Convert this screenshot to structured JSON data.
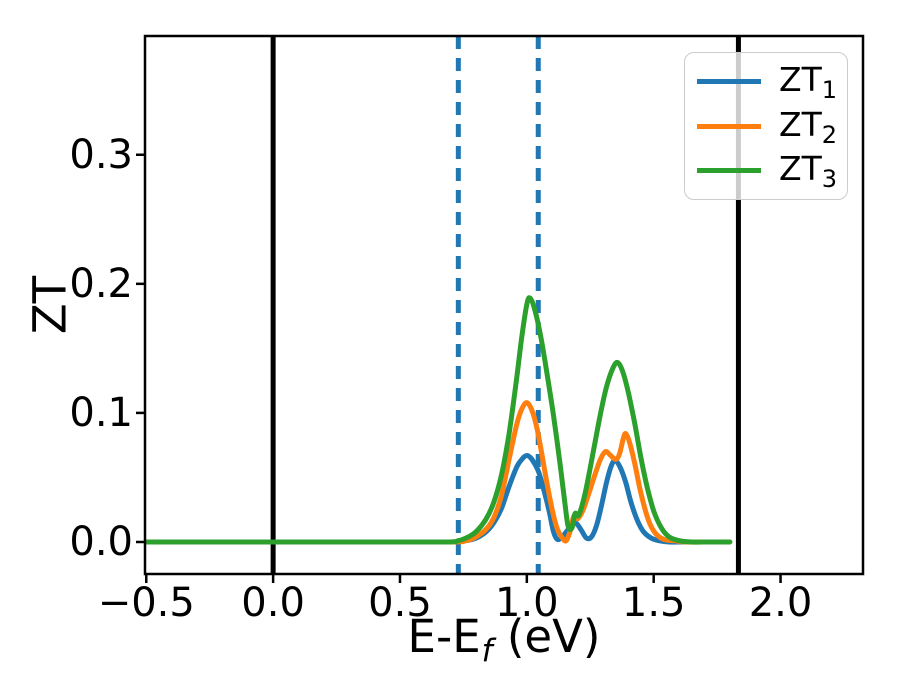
{
  "chart_data": {
    "type": "line",
    "title": "",
    "ylabel": "ZT",
    "xlabel": {
      "prefix": "E-E",
      "sub": "f",
      "suffix": " (eV)"
    },
    "xlim": [
      -0.505,
      2.325
    ],
    "ylim": [
      -0.0248,
      0.392
    ],
    "grid": false,
    "legend_position": "upper right",
    "axis_color": "#000000",
    "x_ticks": [
      {
        "value": -0.5,
        "label": "−0.5"
      },
      {
        "value": 0.0,
        "label": "0.0"
      },
      {
        "value": 0.5,
        "label": "0.5"
      },
      {
        "value": 1.0,
        "label": "1.0"
      },
      {
        "value": 1.5,
        "label": "1.5"
      },
      {
        "value": 2.0,
        "label": "2.0"
      }
    ],
    "y_ticks": [
      {
        "value": 0.0,
        "label": "0.0"
      },
      {
        "value": 0.1,
        "label": "0.1"
      },
      {
        "value": 0.2,
        "label": "0.2"
      },
      {
        "value": 0.3,
        "label": "0.3"
      }
    ],
    "vlines_solid": {
      "color": "#000000",
      "linewidth": 5,
      "positions": [
        0.0,
        1.834
      ]
    },
    "vlines_dashed": {
      "color": "#1f77b4",
      "linewidth": 5,
      "dash": [
        13,
        9
      ],
      "positions": [
        0.73,
        1.045
      ]
    },
    "series": [
      {
        "name": "ZT1",
        "label_text": "ZT",
        "label_sub": "1",
        "color": "#1f77b4",
        "points": [
          [
            -0.5,
            0
          ],
          [
            -0.2,
            0
          ],
          [
            0.1,
            0
          ],
          [
            0.4,
            0
          ],
          [
            0.7,
            0
          ],
          [
            0.76,
            0.001
          ],
          [
            0.8,
            0.003
          ],
          [
            0.84,
            0.008
          ],
          [
            0.87,
            0.015
          ],
          [
            0.9,
            0.026
          ],
          [
            0.93,
            0.043
          ],
          [
            0.96,
            0.058
          ],
          [
            0.98,
            0.064
          ],
          [
            1.0,
            0.067
          ],
          [
            1.02,
            0.064
          ],
          [
            1.045,
            0.055
          ],
          [
            1.07,
            0.038
          ],
          [
            1.09,
            0.022
          ],
          [
            1.105,
            0.008
          ],
          [
            1.12,
            0.002
          ],
          [
            1.14,
            0.004
          ],
          [
            1.16,
            0.009
          ],
          [
            1.18,
            0.013
          ],
          [
            1.195,
            0.0145
          ],
          [
            1.215,
            0.009
          ],
          [
            1.235,
            0.003
          ],
          [
            1.255,
            0.004
          ],
          [
            1.275,
            0.013
          ],
          [
            1.295,
            0.029
          ],
          [
            1.315,
            0.047
          ],
          [
            1.335,
            0.06
          ],
          [
            1.35,
            0.063
          ],
          [
            1.37,
            0.057
          ],
          [
            1.39,
            0.046
          ],
          [
            1.41,
            0.031
          ],
          [
            1.435,
            0.017
          ],
          [
            1.46,
            0.008
          ],
          [
            1.49,
            0.003
          ],
          [
            1.52,
            0.001
          ],
          [
            1.56,
            0
          ],
          [
            1.62,
            0
          ],
          [
            1.7,
            0
          ],
          [
            1.8,
            0
          ]
        ]
      },
      {
        "name": "ZT2",
        "label_text": "ZT",
        "label_sub": "2",
        "color": "#ff7f0e",
        "points": [
          [
            -0.5,
            0
          ],
          [
            -0.2,
            0
          ],
          [
            0.1,
            0
          ],
          [
            0.4,
            0
          ],
          [
            0.7,
            0
          ],
          [
            0.76,
            0.001
          ],
          [
            0.8,
            0.004
          ],
          [
            0.84,
            0.01
          ],
          [
            0.87,
            0.019
          ],
          [
            0.9,
            0.036
          ],
          [
            0.93,
            0.064
          ],
          [
            0.96,
            0.091
          ],
          [
            0.98,
            0.103
          ],
          [
            1.0,
            0.108
          ],
          [
            1.02,
            0.102
          ],
          [
            1.04,
            0.088
          ],
          [
            1.06,
            0.067
          ],
          [
            1.08,
            0.045
          ],
          [
            1.1,
            0.025
          ],
          [
            1.12,
            0.01
          ],
          [
            1.14,
            0.003
          ],
          [
            1.155,
            0.001
          ],
          [
            1.17,
            0.008
          ],
          [
            1.185,
            0.02
          ],
          [
            1.2,
            0.018
          ],
          [
            1.22,
            0.024
          ],
          [
            1.245,
            0.038
          ],
          [
            1.27,
            0.053
          ],
          [
            1.29,
            0.064
          ],
          [
            1.31,
            0.07
          ],
          [
            1.33,
            0.067
          ],
          [
            1.35,
            0.064
          ],
          [
            1.365,
            0.068
          ],
          [
            1.38,
            0.08
          ],
          [
            1.39,
            0.084
          ],
          [
            1.405,
            0.077
          ],
          [
            1.425,
            0.061
          ],
          [
            1.445,
            0.042
          ],
          [
            1.465,
            0.026
          ],
          [
            1.485,
            0.014
          ],
          [
            1.51,
            0.006
          ],
          [
            1.54,
            0.002
          ],
          [
            1.58,
            0.001
          ],
          [
            1.63,
            0
          ],
          [
            1.71,
            0
          ],
          [
            1.8,
            0
          ]
        ]
      },
      {
        "name": "ZT3",
        "label_text": "ZT",
        "label_sub": "3",
        "color": "#2ca02c",
        "points": [
          [
            -0.5,
            0
          ],
          [
            -0.2,
            0
          ],
          [
            0.1,
            0
          ],
          [
            0.4,
            0
          ],
          [
            0.68,
            0
          ],
          [
            0.73,
            0.001
          ],
          [
            0.77,
            0.004
          ],
          [
            0.8,
            0.008
          ],
          [
            0.84,
            0.018
          ],
          [
            0.87,
            0.031
          ],
          [
            0.9,
            0.052
          ],
          [
            0.93,
            0.084
          ],
          [
            0.96,
            0.127
          ],
          [
            0.98,
            0.159
          ],
          [
            1.0,
            0.184
          ],
          [
            1.012,
            0.189
          ],
          [
            1.03,
            0.181
          ],
          [
            1.055,
            0.159
          ],
          [
            1.08,
            0.13
          ],
          [
            1.105,
            0.098
          ],
          [
            1.13,
            0.062
          ],
          [
            1.15,
            0.03
          ],
          [
            1.163,
            0.012
          ],
          [
            1.178,
            0.011
          ],
          [
            1.19,
            0.022
          ],
          [
            1.205,
            0.021
          ],
          [
            1.23,
            0.038
          ],
          [
            1.26,
            0.068
          ],
          [
            1.29,
            0.099
          ],
          [
            1.315,
            0.121
          ],
          [
            1.34,
            0.135
          ],
          [
            1.358,
            0.139
          ],
          [
            1.378,
            0.132
          ],
          [
            1.4,
            0.116
          ],
          [
            1.425,
            0.092
          ],
          [
            1.45,
            0.065
          ],
          [
            1.475,
            0.042
          ],
          [
            1.5,
            0.024
          ],
          [
            1.53,
            0.011
          ],
          [
            1.56,
            0.004
          ],
          [
            1.6,
            0.001
          ],
          [
            1.65,
            0
          ],
          [
            1.72,
            0
          ],
          [
            1.8,
            0
          ]
        ]
      }
    ]
  }
}
